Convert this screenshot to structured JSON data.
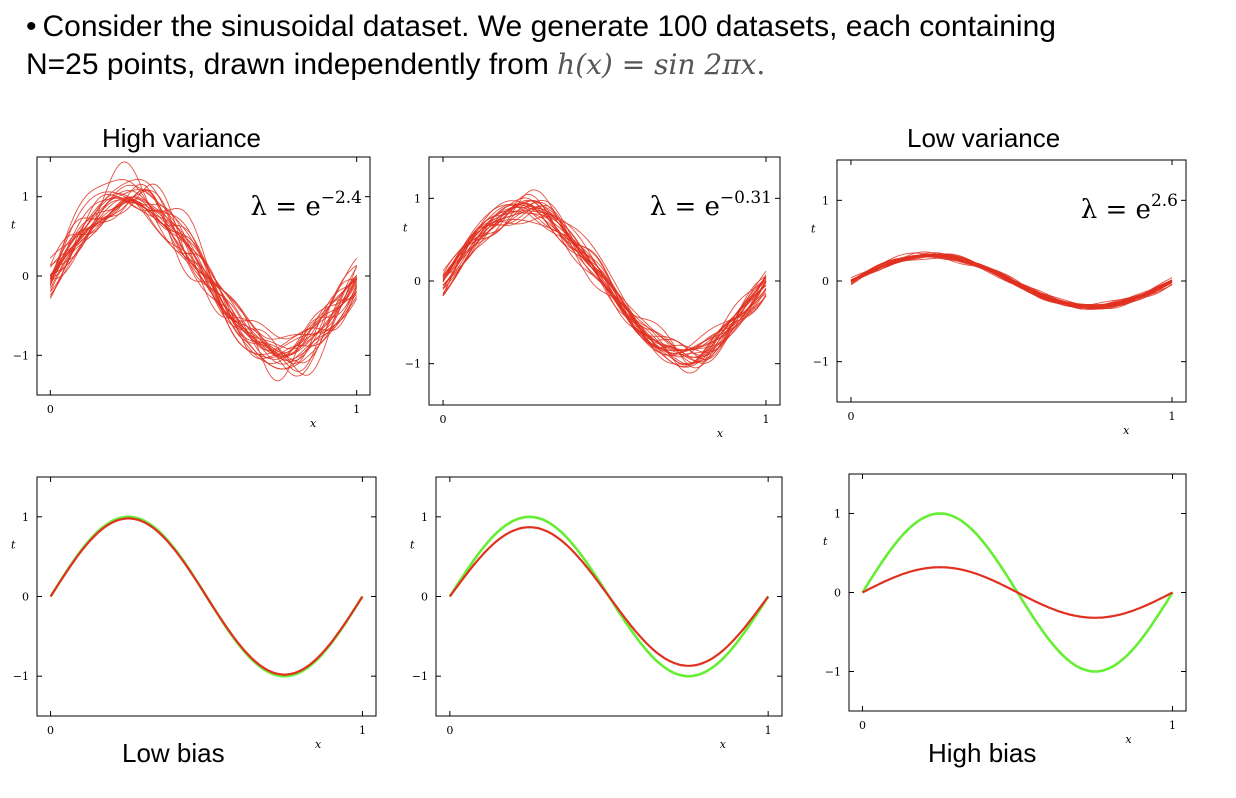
{
  "intro": {
    "bullet": "•",
    "line1": "Consider the sinusoidal dataset. We generate 100 datasets, each containing",
    "line2_text": "N=25 points, drawn independently from",
    "formula_lhs": "h(x)",
    "formula_eq": "=",
    "formula_rhs": "sin 2πx",
    "formula_end": "."
  },
  "captions": {
    "top_left": "High variance",
    "top_right": "Low variance",
    "bottom_left": "Low bias",
    "bottom_right": "High bias"
  },
  "colors": {
    "fits": "#e03020",
    "truth": "#66ee33",
    "axes": "#000000"
  },
  "chart_data": [
    {
      "type": "line",
      "panel": "top-left",
      "title": "",
      "annotation": {
        "base": "λ = e",
        "exponent": "−2.4"
      },
      "xlabel": "x",
      "ylabel": "t",
      "xlim": [
        0,
        1
      ],
      "ylim": [
        -1.5,
        1.5
      ],
      "xticks": [
        "0",
        "1"
      ],
      "yticks": [
        "−1",
        "0",
        "1"
      ],
      "series": [
        {
          "kind": "individual fits",
          "count": 25,
          "amplitude": 1.0,
          "noise": 0.22
        }
      ]
    },
    {
      "type": "line",
      "panel": "top-middle",
      "title": "",
      "annotation": {
        "base": "λ = e",
        "exponent": "−0.31"
      },
      "xlabel": "x",
      "ylabel": "t",
      "xlim": [
        0,
        1
      ],
      "ylim": [
        -1.5,
        1.5
      ],
      "xticks": [
        "0",
        "1"
      ],
      "yticks": [
        "−1",
        "0",
        "1"
      ],
      "series": [
        {
          "kind": "individual fits",
          "count": 25,
          "amplitude": 0.88,
          "noise": 0.13
        }
      ]
    },
    {
      "type": "line",
      "panel": "top-right",
      "title": "",
      "annotation": {
        "base": "λ = e",
        "exponent": "2.6"
      },
      "xlabel": "x",
      "ylabel": "t",
      "xlim": [
        0,
        1
      ],
      "ylim": [
        -1.5,
        1.5
      ],
      "xticks": [
        "0",
        "1"
      ],
      "yticks": [
        "−1",
        "0",
        "1"
      ],
      "series": [
        {
          "kind": "individual fits",
          "count": 25,
          "amplitude": 0.32,
          "noise": 0.035
        }
      ]
    },
    {
      "type": "line",
      "panel": "bottom-left",
      "title": "",
      "xlabel": "x",
      "ylabel": "t",
      "xlim": [
        0,
        1
      ],
      "ylim": [
        -1.5,
        1.5
      ],
      "xticks": [
        "0",
        "1"
      ],
      "yticks": [
        "−1",
        "0",
        "1"
      ],
      "series": [
        {
          "kind": "true function sin 2πx",
          "color": "green",
          "amplitude": 1.0
        },
        {
          "kind": "average fit",
          "color": "red",
          "amplitude": 0.98
        }
      ]
    },
    {
      "type": "line",
      "panel": "bottom-middle",
      "title": "",
      "xlabel": "x",
      "ylabel": "t",
      "xlim": [
        0,
        1
      ],
      "ylim": [
        -1.5,
        1.5
      ],
      "xticks": [
        "0",
        "1"
      ],
      "yticks": [
        "−1",
        "0",
        "1"
      ],
      "series": [
        {
          "kind": "true function sin 2πx",
          "color": "green",
          "amplitude": 1.0
        },
        {
          "kind": "average fit",
          "color": "red",
          "amplitude": 0.87
        }
      ]
    },
    {
      "type": "line",
      "panel": "bottom-right",
      "title": "",
      "xlabel": "x",
      "ylabel": "t",
      "xlim": [
        0,
        1
      ],
      "ylim": [
        -1.5,
        1.5
      ],
      "xticks": [
        "0",
        "1"
      ],
      "yticks": [
        "−1",
        "0",
        "1"
      ],
      "series": [
        {
          "kind": "true function sin 2πx",
          "color": "green",
          "amplitude": 1.0
        },
        {
          "kind": "average fit",
          "color": "red",
          "amplitude": 0.32
        }
      ]
    }
  ]
}
